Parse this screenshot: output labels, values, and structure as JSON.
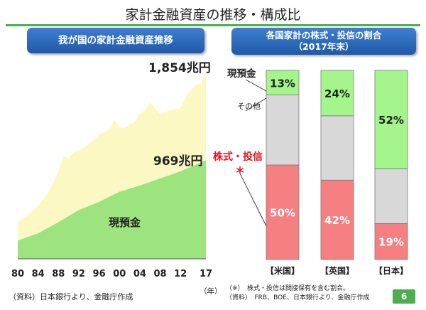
{
  "page": {
    "title": "家計金融資産の推移・構成比",
    "page_number": "6",
    "accent_color": "#4cae50"
  },
  "left_panel": {
    "heading": "我が国の家計金融資産推移",
    "total_label": "1,854兆円",
    "cash_label": "969兆円",
    "area_label": "現預金",
    "year_unit": "（年）",
    "source": "（資料）日本銀行より、金融庁作成"
  },
  "right_panel": {
    "heading_line1": "各国家計の株式・投信の割合",
    "heading_line2": "（2017年末）",
    "legend_cash": "現預金",
    "legend_other": "その他",
    "legend_stocks": "株式・投信",
    "legend_stocks_mark": "＊",
    "note_line1": "（※）　株式・投信は間接保有を含む割合。",
    "note_line2": "（資料）　FRB、BOE、日本銀行より、金融庁作成"
  },
  "chart_data": [
    {
      "type": "area",
      "x_tick_labels": [
        "80",
        "84",
        "88",
        "92",
        "96",
        "00",
        "04",
        "08",
        "12",
        "17"
      ],
      "xlim": [
        1980,
        2017
      ],
      "ylim": [
        0,
        2000
      ],
      "colors": {
        "total": "#fbf8c4",
        "cash": "#9de47e"
      },
      "series": [
        {
          "key": "total",
          "x": [
            1980,
            1982,
            1984,
            1986,
            1988,
            1989,
            1990,
            1991,
            1992,
            1994,
            1996,
            1998,
            1999,
            2000,
            2001,
            2002,
            2003,
            2004,
            2005,
            2006,
            2007,
            2008,
            2009,
            2010,
            2012,
            2013,
            2014,
            2015,
            2016,
            2017
          ],
          "values": [
            360,
            430,
            520,
            650,
            860,
            1010,
            990,
            1050,
            1060,
            1130,
            1220,
            1270,
            1370,
            1290,
            1290,
            1320,
            1350,
            1430,
            1460,
            1540,
            1480,
            1420,
            1450,
            1460,
            1480,
            1590,
            1660,
            1710,
            1720,
            1854
          ]
        },
        {
          "key": "cash",
          "x": [
            1980,
            1984,
            1988,
            1992,
            1996,
            2000,
            2004,
            2008,
            2012,
            2017
          ],
          "values": [
            180,
            250,
            360,
            480,
            560,
            660,
            720,
            790,
            860,
            969
          ]
        }
      ]
    },
    {
      "type": "bar",
      "stacked": true,
      "categories": [
        "【米国】",
        "【英国】",
        "【日本】"
      ],
      "colors": {
        "stocks": "#f67f82",
        "other": "#d8d8d8",
        "cash": "#a3f58c"
      },
      "series": [
        {
          "key": "stocks",
          "values": [
            50,
            42,
            19
          ],
          "labels": [
            "50%",
            "42%",
            "19%"
          ]
        },
        {
          "key": "other",
          "values": [
            37,
            34,
            29
          ],
          "labels": [
            "",
            "",
            ""
          ]
        },
        {
          "key": "cash",
          "values": [
            13,
            24,
            52
          ],
          "labels": [
            "13%",
            "24%",
            "52%"
          ]
        }
      ]
    }
  ]
}
